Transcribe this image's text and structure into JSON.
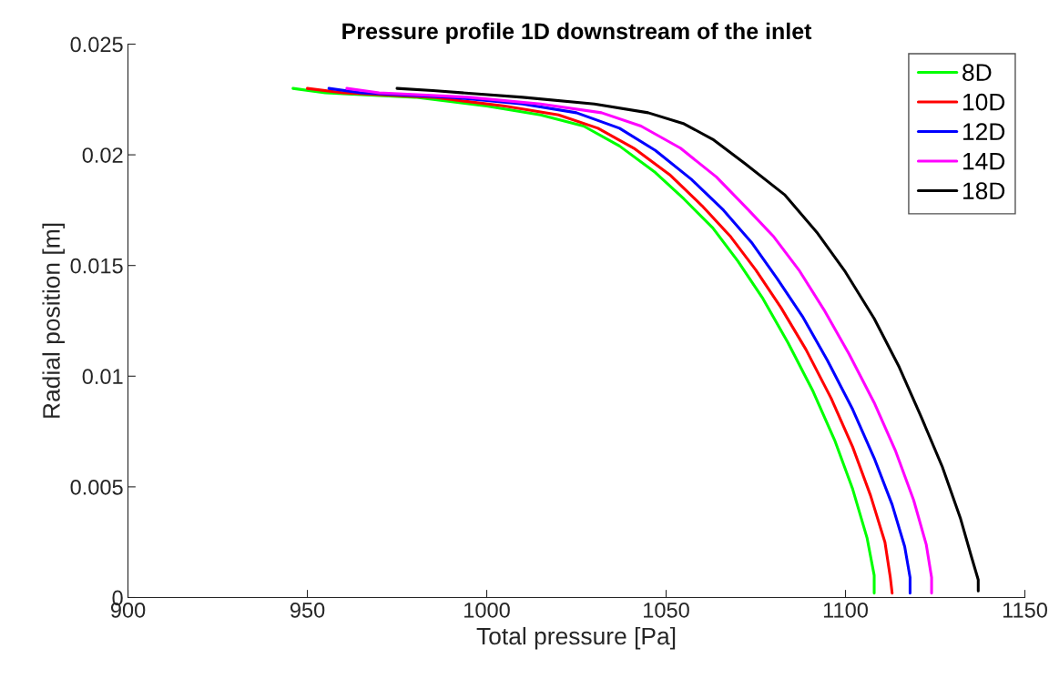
{
  "chart_data": {
    "type": "line",
    "title": "Pressure profile 1D downstream of the inlet",
    "xlabel": "Total pressure [Pa]",
    "ylabel": "Radial position [m]",
    "xlim": [
      900,
      1150
    ],
    "xticks": [
      900,
      950,
      1000,
      1050,
      1100,
      1150
    ],
    "ylim": [
      0,
      0.025
    ],
    "yticks": [
      0,
      0.005,
      0.01,
      0.015,
      0.02,
      0.025
    ],
    "grid": false,
    "legend": "top right",
    "line_style": "solid",
    "marker": "none",
    "series": [
      {
        "name": "8D",
        "color": "#00ff00",
        "x": [
          946,
          955,
          980,
          1000,
          1015,
          1027,
          1037,
          1047,
          1055,
          1063,
          1070,
          1077,
          1084,
          1091,
          1097,
          1102,
          1106,
          1108,
          1108
        ],
        "values": [
          0.023,
          0.0228,
          0.0226,
          0.0222,
          0.0218,
          0.0213,
          0.0204,
          0.0192,
          0.018,
          0.0167,
          0.0152,
          0.0135,
          0.0115,
          0.0093,
          0.0071,
          0.0049,
          0.0027,
          0.001,
          0.0002
        ]
      },
      {
        "name": "10D",
        "color": "#ff0000",
        "x": [
          950,
          960,
          985,
          1005,
          1020,
          1031,
          1041,
          1051,
          1060,
          1068,
          1075,
          1082,
          1089,
          1096,
          1102,
          1107,
          1111,
          1112.5,
          1113
        ],
        "values": [
          0.023,
          0.0228,
          0.0226,
          0.0222,
          0.0218,
          0.0212,
          0.0203,
          0.0191,
          0.0177,
          0.0163,
          0.0148,
          0.0131,
          0.0112,
          0.009,
          0.0068,
          0.0046,
          0.0025,
          0.0009,
          0.0002
        ]
      },
      {
        "name": "12D",
        "color": "#0000ff",
        "x": [
          956,
          965,
          990,
          1010,
          1025,
          1037,
          1047,
          1057,
          1066,
          1074,
          1081,
          1088,
          1095,
          1102,
          1108,
          1113,
          1116.5,
          1118,
          1118
        ],
        "values": [
          0.023,
          0.0228,
          0.0226,
          0.0223,
          0.0219,
          0.0212,
          0.0202,
          0.0189,
          0.0175,
          0.016,
          0.0144,
          0.0127,
          0.0107,
          0.0085,
          0.0063,
          0.0042,
          0.0023,
          0.0009,
          0.0002
        ]
      },
      {
        "name": "14D",
        "color": "#ff00ff",
        "x": [
          961,
          970,
          995,
          1015,
          1032,
          1043,
          1054,
          1064,
          1073,
          1080,
          1087,
          1094,
          1101,
          1108,
          1114,
          1119,
          1122.5,
          1124,
          1124
        ],
        "values": [
          0.023,
          0.0228,
          0.0226,
          0.0223,
          0.0219,
          0.0213,
          0.0203,
          0.019,
          0.0175,
          0.0163,
          0.0148,
          0.013,
          0.011,
          0.0088,
          0.0066,
          0.0044,
          0.0024,
          0.0009,
          0.0002
        ]
      },
      {
        "name": "18D",
        "color": "#000000",
        "x": [
          975,
          985,
          1010,
          1030,
          1045,
          1055,
          1063,
          1072,
          1083,
          1092,
          1100,
          1108,
          1115,
          1121,
          1127,
          1132,
          1135,
          1137,
          1137
        ],
        "values": [
          0.023,
          0.0229,
          0.0226,
          0.0223,
          0.0219,
          0.0214,
          0.0207,
          0.0196,
          0.0182,
          0.0165,
          0.0147,
          0.0126,
          0.0104,
          0.0082,
          0.0059,
          0.0036,
          0.0019,
          0.0008,
          0.0003
        ]
      }
    ]
  }
}
